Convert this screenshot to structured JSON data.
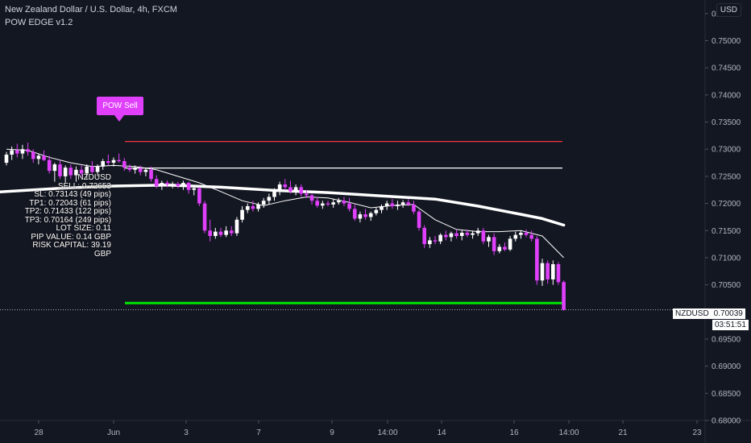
{
  "header": {
    "title": "New Zealand Dollar / U.S. Dollar, 4h, FXCM",
    "indicator": "POW EDGE v1.2",
    "currency": "USD"
  },
  "signal": {
    "label": "POW Sell",
    "stats": [
      "NZDUSD",
      "SELL: 0.72653",
      "SL: 0.73143 (49 pips)",
      "TP1: 0.72043 (61 pips)",
      "TP2: 0.71433 (122 pips)",
      "TP3: 0.70164 (249 pips)",
      "LOT SIZE: 0.11",
      "PIP VALUE: 0.14 GBP",
      "RISK CAPITAL: 39.19 GBP"
    ]
  },
  "price_tag": {
    "symbol": "NZDUSD",
    "price": "0.70039",
    "countdown": "03:51:51"
  },
  "colors": {
    "background": "#131722",
    "bull": "#ffffff",
    "bear": "#e040fb",
    "sl_line": "#f23645",
    "entry_line": "#ffffff",
    "tp_line": "#00e600"
  },
  "chart_data": {
    "type": "candlestick",
    "symbol": "NZDUSD",
    "timeframe": "4h",
    "y_ticks": [
      "0.75500",
      "0.75000",
      "0.74500",
      "0.74000",
      "0.73500",
      "0.73000",
      "0.72500",
      "0.72000",
      "0.71500",
      "0.71000",
      "0.70500",
      "0.70000",
      "0.69500",
      "0.69000",
      "0.68500",
      "0.68000"
    ],
    "ylim": [
      0.68,
      0.7575
    ],
    "x_ticks": [
      "28",
      "Jun",
      "3",
      "7",
      "9",
      "14:00",
      "14",
      "16",
      "14:00",
      "21",
      "23"
    ],
    "levels": {
      "sl": 0.73143,
      "entry": 0.72653,
      "tp3": 0.70164
    },
    "last_price": 0.70039,
    "candles": [
      [
        0.7275,
        0.7295,
        0.727,
        0.729
      ],
      [
        0.729,
        0.7305,
        0.728,
        0.7298
      ],
      [
        0.7298,
        0.731,
        0.7285,
        0.7292
      ],
      [
        0.7292,
        0.7308,
        0.7282,
        0.73
      ],
      [
        0.73,
        0.7312,
        0.7288,
        0.7295
      ],
      [
        0.7295,
        0.73,
        0.7275,
        0.7282
      ],
      [
        0.7282,
        0.7292,
        0.7272,
        0.7288
      ],
      [
        0.7288,
        0.7298,
        0.7278,
        0.728
      ],
      [
        0.728,
        0.7288,
        0.7255,
        0.726
      ],
      [
        0.726,
        0.7275,
        0.724,
        0.7272
      ],
      [
        0.7272,
        0.728,
        0.7245,
        0.725
      ],
      [
        0.725,
        0.727,
        0.7238,
        0.7266
      ],
      [
        0.7266,
        0.7272,
        0.7245,
        0.7252
      ],
      [
        0.7252,
        0.7268,
        0.724,
        0.7262
      ],
      [
        0.7262,
        0.727,
        0.7248,
        0.7255
      ],
      [
        0.7255,
        0.7272,
        0.7245,
        0.7268
      ],
      [
        0.7268,
        0.7278,
        0.7255,
        0.7258
      ],
      [
        0.7258,
        0.7272,
        0.725,
        0.7268
      ],
      [
        0.7268,
        0.7282,
        0.7262,
        0.7278
      ],
      [
        0.7278,
        0.729,
        0.727,
        0.7275
      ],
      [
        0.7275,
        0.7285,
        0.7268,
        0.728
      ],
      [
        0.728,
        0.7292,
        0.7275,
        0.7278
      ],
      [
        0.7278,
        0.7284,
        0.726,
        0.7266
      ],
      [
        0.7266,
        0.7272,
        0.7258,
        0.7262
      ],
      [
        0.7262,
        0.727,
        0.7255,
        0.7265
      ],
      [
        0.7265,
        0.727,
        0.7252,
        0.7258
      ],
      [
        0.7258,
        0.7266,
        0.725,
        0.7262
      ],
      [
        0.7262,
        0.7268,
        0.724,
        0.7245
      ],
      [
        0.7245,
        0.7252,
        0.7228,
        0.7232
      ],
      [
        0.7232,
        0.7242,
        0.7225,
        0.7238
      ],
      [
        0.7238,
        0.7242,
        0.723,
        0.7235
      ],
      [
        0.7235,
        0.724,
        0.7228,
        0.7236
      ],
      [
        0.7236,
        0.724,
        0.7228,
        0.7232
      ],
      [
        0.7232,
        0.7242,
        0.7225,
        0.7238
      ],
      [
        0.7238,
        0.724,
        0.7218,
        0.7225
      ],
      [
        0.7225,
        0.7232,
        0.7215,
        0.7228
      ],
      [
        0.7228,
        0.723,
        0.7195,
        0.72
      ],
      [
        0.72,
        0.7205,
        0.7145,
        0.715
      ],
      [
        0.715,
        0.717,
        0.713,
        0.714
      ],
      [
        0.714,
        0.7155,
        0.7135,
        0.7148
      ],
      [
        0.7148,
        0.7155,
        0.7138,
        0.7142
      ],
      [
        0.7142,
        0.7158,
        0.7138,
        0.715
      ],
      [
        0.715,
        0.7158,
        0.714,
        0.7145
      ],
      [
        0.7145,
        0.7175,
        0.714,
        0.717
      ],
      [
        0.717,
        0.7195,
        0.7165,
        0.7188
      ],
      [
        0.7188,
        0.72,
        0.7182,
        0.7195
      ],
      [
        0.7195,
        0.7205,
        0.7185,
        0.719
      ],
      [
        0.719,
        0.7202,
        0.7185,
        0.7198
      ],
      [
        0.7198,
        0.721,
        0.7192,
        0.7205
      ],
      [
        0.7205,
        0.7218,
        0.7198,
        0.7212
      ],
      [
        0.7212,
        0.7228,
        0.7205,
        0.7222
      ],
      [
        0.7222,
        0.724,
        0.7215,
        0.7235
      ],
      [
        0.7235,
        0.7245,
        0.7225,
        0.723
      ],
      [
        0.723,
        0.7242,
        0.7218,
        0.7222
      ],
      [
        0.7222,
        0.7235,
        0.7215,
        0.723
      ],
      [
        0.723,
        0.7235,
        0.7212,
        0.7218
      ],
      [
        0.7218,
        0.7225,
        0.721,
        0.7215
      ],
      [
        0.7215,
        0.7218,
        0.7198,
        0.7205
      ],
      [
        0.7205,
        0.7212,
        0.7192,
        0.7196
      ],
      [
        0.7196,
        0.7205,
        0.719,
        0.72
      ],
      [
        0.72,
        0.7205,
        0.7195,
        0.7198
      ],
      [
        0.7198,
        0.7208,
        0.7192,
        0.7202
      ],
      [
        0.7202,
        0.721,
        0.7198,
        0.7205
      ],
      [
        0.7205,
        0.7212,
        0.7195,
        0.72
      ],
      [
        0.72,
        0.721,
        0.7185,
        0.719
      ],
      [
        0.719,
        0.7198,
        0.7168,
        0.7172
      ],
      [
        0.7172,
        0.7185,
        0.7165,
        0.718
      ],
      [
        0.718,
        0.719,
        0.717,
        0.7175
      ],
      [
        0.7175,
        0.7185,
        0.7168,
        0.7182
      ],
      [
        0.7182,
        0.7192,
        0.7178,
        0.7188
      ],
      [
        0.7188,
        0.7198,
        0.7182,
        0.7195
      ],
      [
        0.7195,
        0.7205,
        0.7188,
        0.72
      ],
      [
        0.72,
        0.7208,
        0.719,
        0.7195
      ],
      [
        0.7195,
        0.7205,
        0.7188,
        0.7198
      ],
      [
        0.7198,
        0.7206,
        0.7192,
        0.7202
      ],
      [
        0.7202,
        0.7208,
        0.7195,
        0.7198
      ],
      [
        0.7198,
        0.7205,
        0.718,
        0.7185
      ],
      [
        0.7185,
        0.7188,
        0.715,
        0.7155
      ],
      [
        0.7155,
        0.716,
        0.7118,
        0.7125
      ],
      [
        0.7125,
        0.7138,
        0.7118,
        0.7132
      ],
      [
        0.7132,
        0.714,
        0.7125,
        0.713
      ],
      [
        0.713,
        0.7145,
        0.7125,
        0.7142
      ],
      [
        0.7142,
        0.715,
        0.7132,
        0.7138
      ],
      [
        0.7138,
        0.7148,
        0.713,
        0.7145
      ],
      [
        0.7145,
        0.7152,
        0.7135,
        0.714
      ],
      [
        0.714,
        0.715,
        0.7132,
        0.7146
      ],
      [
        0.7146,
        0.7152,
        0.7138,
        0.7142
      ],
      [
        0.7142,
        0.715,
        0.7135,
        0.7145
      ],
      [
        0.7145,
        0.7155,
        0.714,
        0.715
      ],
      [
        0.715,
        0.7155,
        0.7125,
        0.713
      ],
      [
        0.713,
        0.7142,
        0.712,
        0.7138
      ],
      [
        0.7138,
        0.7145,
        0.7105,
        0.7112
      ],
      [
        0.7112,
        0.7125,
        0.7108,
        0.712
      ],
      [
        0.712,
        0.7128,
        0.7112,
        0.7115
      ],
      [
        0.7115,
        0.714,
        0.7112,
        0.7135
      ],
      [
        0.7135,
        0.7148,
        0.713,
        0.7142
      ],
      [
        0.7142,
        0.715,
        0.7135,
        0.7146
      ],
      [
        0.7146,
        0.7152,
        0.7138,
        0.7142
      ],
      [
        0.7142,
        0.715,
        0.713,
        0.7135
      ],
      [
        0.7135,
        0.714,
        0.705,
        0.7058
      ],
      [
        0.7058,
        0.7098,
        0.7048,
        0.709
      ],
      [
        0.709,
        0.7095,
        0.7052,
        0.706
      ],
      [
        0.706,
        0.7095,
        0.705,
        0.7088
      ],
      [
        0.7088,
        0.7092,
        0.705,
        0.7055
      ],
      [
        0.7055,
        0.7058,
        0.7002,
        0.7004
      ]
    ],
    "ema_fast": [
      [
        0,
        0.73
      ],
      [
        4,
        0.7298
      ],
      [
        8,
        0.7285
      ],
      [
        12,
        0.7275
      ],
      [
        16,
        0.7268
      ],
      [
        20,
        0.727
      ],
      [
        24,
        0.7268
      ],
      [
        28,
        0.7262
      ],
      [
        32,
        0.725
      ],
      [
        36,
        0.7238
      ],
      [
        40,
        0.7222
      ],
      [
        44,
        0.7205
      ],
      [
        48,
        0.7196
      ],
      [
        52,
        0.7205
      ],
      [
        56,
        0.7212
      ],
      [
        60,
        0.721
      ],
      [
        64,
        0.7202
      ],
      [
        68,
        0.7192
      ],
      [
        72,
        0.7196
      ],
      [
        76,
        0.7198
      ],
      [
        80,
        0.717
      ],
      [
        84,
        0.7152
      ],
      [
        88,
        0.7148
      ],
      [
        92,
        0.7148
      ],
      [
        96,
        0.715
      ],
      [
        100,
        0.714
      ],
      [
        104,
        0.71
      ]
    ],
    "ema_slow": [
      [
        -14,
        0.7215
      ],
      [
        0,
        0.7222
      ],
      [
        10,
        0.7228
      ],
      [
        20,
        0.7232
      ],
      [
        30,
        0.7234
      ],
      [
        40,
        0.723
      ],
      [
        50,
        0.7224
      ],
      [
        60,
        0.722
      ],
      [
        70,
        0.7214
      ],
      [
        80,
        0.7208
      ],
      [
        88,
        0.7195
      ],
      [
        96,
        0.718
      ],
      [
        100,
        0.7172
      ],
      [
        104,
        0.716
      ]
    ]
  }
}
